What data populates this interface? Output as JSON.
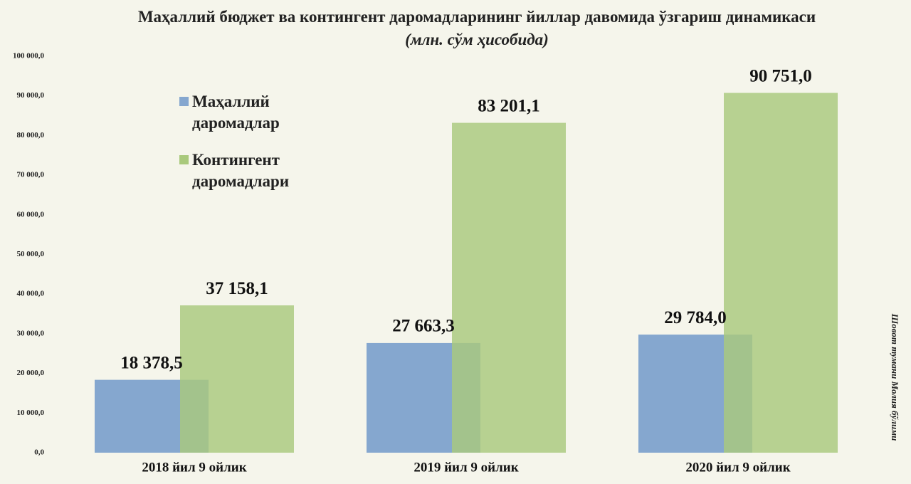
{
  "chart_data": {
    "type": "bar",
    "title": "Маҳаллий бюджет ва контингент даромадларининг йиллар давомида ўзгариш динамикаси",
    "subtitle": "(млн. сўм ҳисобида)",
    "annotation": "Шовот тумани Молия бўлими",
    "categories": [
      "2018 йил 9 ойлик",
      "2019 йил 9 ойлик",
      "2020 йил 9 ойлик"
    ],
    "series": [
      {
        "name": "Маҳаллий даромадлар",
        "color": "#85a7cf",
        "values": [
          18378.5,
          27663.3,
          29784.0
        ],
        "value_labels": [
          "18 378,5",
          "27 663,3",
          "29 784,0"
        ]
      },
      {
        "name": "Контингент даромадлари",
        "color": "#a9c97c",
        "values": [
          37158.1,
          83201.1,
          90751.0
        ],
        "value_labels": [
          "37 158,1",
          "83 201,1",
          "90 751,0"
        ]
      }
    ],
    "ylim": [
      0,
      100000
    ],
    "yticks": [
      {
        "value": 0,
        "label": "0,0"
      },
      {
        "value": 10000,
        "label": "10 000,0"
      },
      {
        "value": 20000,
        "label": "20 000,0"
      },
      {
        "value": 30000,
        "label": "30 000,0"
      },
      {
        "value": 40000,
        "label": "40 000,0"
      },
      {
        "value": 50000,
        "label": "50 000,0"
      },
      {
        "value": 60000,
        "label": "60 000,0"
      },
      {
        "value": 70000,
        "label": "70 000,0"
      },
      {
        "value": 80000,
        "label": "80 000,0"
      },
      {
        "value": 90000,
        "label": "90 000,0"
      },
      {
        "value": 100000,
        "label": "100 000,0"
      }
    ]
  }
}
